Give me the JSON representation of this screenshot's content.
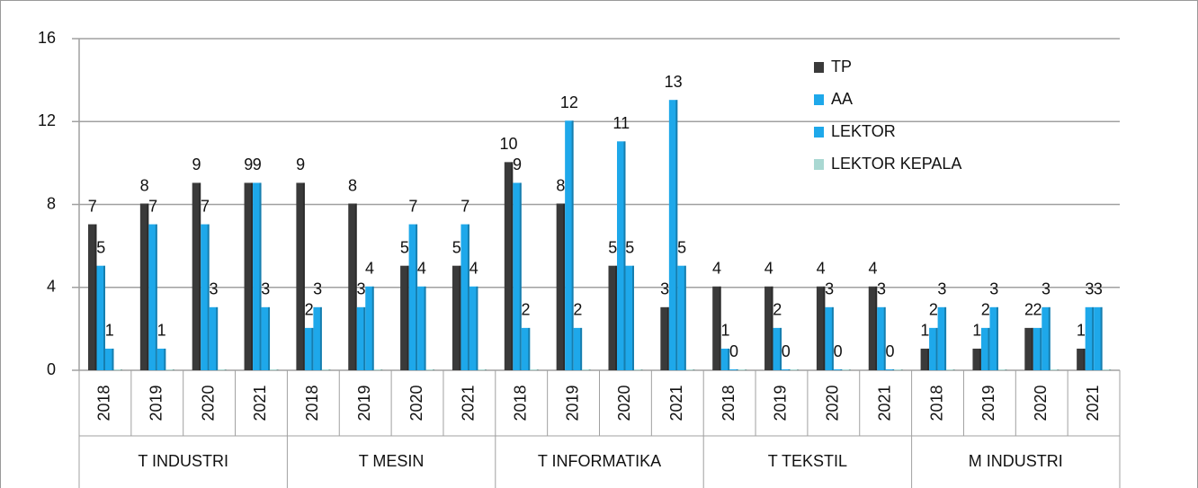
{
  "chart_data": {
    "type": "bar",
    "categories": [
      "2018",
      "2019",
      "2020",
      "2021",
      "2018",
      "2019",
      "2020",
      "2021",
      "2018",
      "2019",
      "2020",
      "2021",
      "2018",
      "2019",
      "2020",
      "2021",
      "2018",
      "2019",
      "2020",
      "2021"
    ],
    "groups": [
      "T INDUSTRI",
      "T MESIN",
      "T INFORMATIKA",
      "T TEKSTIL",
      "M INDUSTRI"
    ],
    "series": [
      {
        "name": "TP",
        "color": "#3a3a3a",
        "data_labels": true,
        "values": [
          7,
          8,
          9,
          9,
          9,
          8,
          5,
          5,
          10,
          8,
          5,
          3,
          4,
          4,
          4,
          4,
          1,
          1,
          2,
          1
        ]
      },
      {
        "name": "AA",
        "color": "#1ea8ea",
        "data_labels": true,
        "values": [
          5,
          7,
          7,
          9,
          2,
          3,
          7,
          7,
          9,
          12,
          11,
          13,
          1,
          2,
          3,
          3,
          2,
          2,
          2,
          3
        ]
      },
      {
        "name": "LEKTOR",
        "color": "#1ea8ea",
        "data_labels": true,
        "values": [
          1,
          1,
          3,
          3,
          3,
          4,
          4,
          4,
          2,
          2,
          5,
          5,
          0,
          0,
          0,
          0,
          3,
          3,
          3,
          3
        ]
      },
      {
        "name": "LEKTOR KEPALA",
        "color": "#a9d8d2",
        "data_labels": false,
        "values": [
          0,
          0,
          0,
          0,
          0,
          0,
          0,
          0,
          0,
          0,
          0,
          0,
          0,
          0,
          0,
          0,
          0,
          0,
          0,
          0
        ]
      }
    ],
    "ylim": [
      0,
      16
    ],
    "yticks": [
      0,
      4,
      8,
      12,
      16
    ],
    "grid": true,
    "legend": "upper right"
  }
}
